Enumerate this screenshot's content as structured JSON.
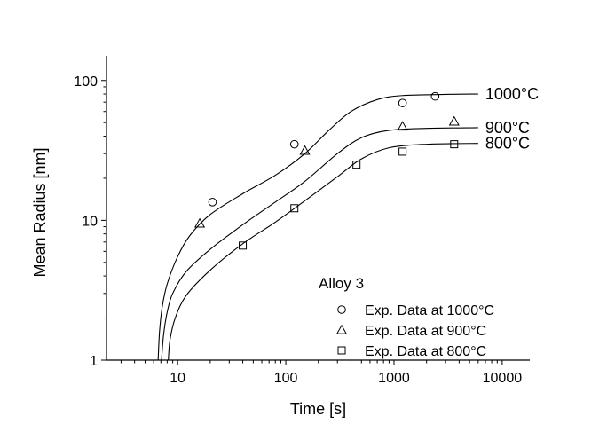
{
  "chart_data": {
    "type": "scatter",
    "title": "",
    "xlabel": "Time [s]",
    "ylabel": "Mean Radius [nm]",
    "xscale": "log",
    "yscale": "log",
    "xlim": [
      2.2,
      18000
    ],
    "ylim": [
      1,
      150
    ],
    "x_ticks": [
      10,
      100,
      1000,
      10000
    ],
    "x_tick_labels": [
      "10",
      "100",
      "1000",
      "10000"
    ],
    "y_ticks": [
      1,
      10,
      100
    ],
    "y_tick_labels": [
      "1",
      "10",
      "100"
    ],
    "grid": false,
    "legend": {
      "title": "Alloy 3",
      "position": "bottom-right",
      "entries": [
        {
          "label": "Exp. Data at 1000°C",
          "marker": "circle"
        },
        {
          "label": "Exp. Data at 900°C",
          "marker": "triangle"
        },
        {
          "label": "Exp. Data at 800°C",
          "marker": "square"
        }
      ]
    },
    "series": [
      {
        "name": "Exp. Data at 1000°C",
        "kind": "scatter",
        "marker": "circle",
        "points": [
          [
            21,
            13.5
          ],
          [
            120,
            35
          ],
          [
            1200,
            69
          ],
          [
            2400,
            77
          ]
        ]
      },
      {
        "name": "Exp. Data at 900°C",
        "kind": "scatter",
        "marker": "triangle",
        "points": [
          [
            16,
            9.5
          ],
          [
            150,
            31.5
          ],
          [
            1200,
            47
          ],
          [
            3600,
            51
          ]
        ]
      },
      {
        "name": "Exp. Data at 800°C",
        "kind": "scatter",
        "marker": "square",
        "points": [
          [
            40,
            6.6
          ],
          [
            120,
            12.2
          ],
          [
            450,
            25
          ],
          [
            1200,
            31
          ],
          [
            3600,
            35
          ]
        ]
      },
      {
        "name": "1000°C",
        "kind": "line",
        "label": "1000°C",
        "points": [
          [
            6.6,
            1
          ],
          [
            6.8,
            1.6
          ],
          [
            7.2,
            2.4
          ],
          [
            8,
            3.5
          ],
          [
            10,
            5.5
          ],
          [
            13,
            7.8
          ],
          [
            20,
            11
          ],
          [
            40,
            15.5
          ],
          [
            80,
            21
          ],
          [
            150,
            30
          ],
          [
            250,
            44
          ],
          [
            400,
            60
          ],
          [
            700,
            73
          ],
          [
            1200,
            78
          ],
          [
            3000,
            79.5
          ],
          [
            6000,
            80
          ]
        ]
      },
      {
        "name": "900°C",
        "kind": "line",
        "label": "900°C",
        "points": [
          [
            7.1,
            1
          ],
          [
            7.4,
            1.5
          ],
          [
            8,
            2.2
          ],
          [
            9,
            3
          ],
          [
            12,
            4.3
          ],
          [
            20,
            6.2
          ],
          [
            40,
            9.3
          ],
          [
            80,
            13.5
          ],
          [
            150,
            19
          ],
          [
            300,
            30
          ],
          [
            500,
            39
          ],
          [
            900,
            44
          ],
          [
            2000,
            45.5
          ],
          [
            6000,
            46
          ]
        ]
      },
      {
        "name": "800°C",
        "kind": "line",
        "label": "800°C",
        "points": [
          [
            8.2,
            1
          ],
          [
            8.5,
            1.4
          ],
          [
            9.5,
            2
          ],
          [
            12,
            2.9
          ],
          [
            20,
            4.4
          ],
          [
            40,
            6.8
          ],
          [
            80,
            9.7
          ],
          [
            150,
            13.8
          ],
          [
            300,
            20.5
          ],
          [
            500,
            27.5
          ],
          [
            900,
            33
          ],
          [
            2000,
            35
          ],
          [
            6000,
            35.5
          ]
        ]
      }
    ]
  }
}
